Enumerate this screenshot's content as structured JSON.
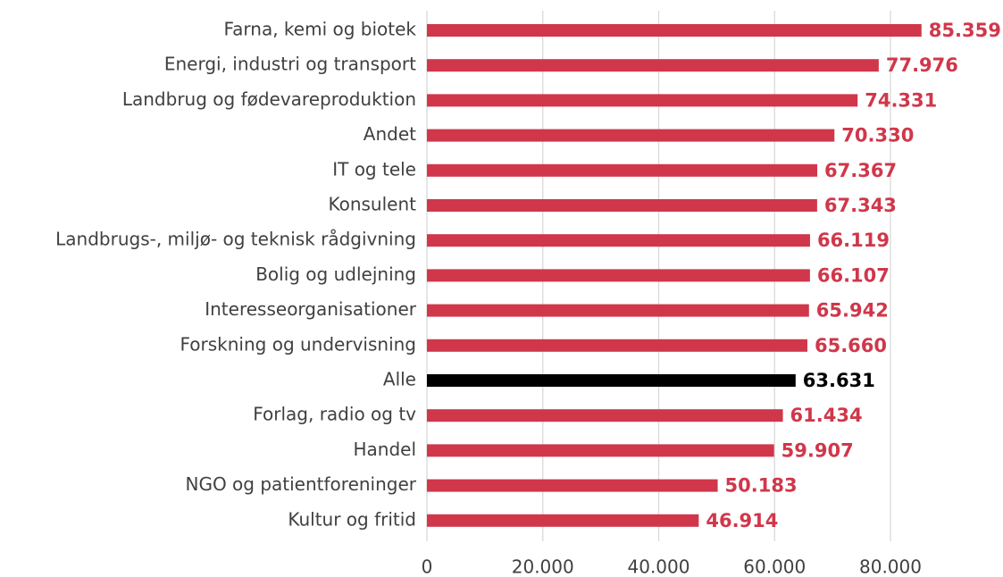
{
  "chart_data": {
    "type": "bar",
    "orientation": "horizontal",
    "categories": [
      "Farna, kemi og biotek",
      "Energi, industri og transport",
      "Landbrug og fødevareproduktion",
      "Andet",
      "IT og tele",
      "Konsulent",
      "Landbrugs-, miljø- og teknisk rådgivning",
      "Bolig og udlejning",
      "Interesseorganisationer",
      "Forskning og undervisning",
      "Alle",
      "Forlag, radio og tv",
      "Handel",
      "NGO og patientforeninger",
      "Kultur og fritid"
    ],
    "values": [
      85359,
      77976,
      74331,
      70330,
      67367,
      67343,
      66119,
      66107,
      65942,
      65660,
      63631,
      61434,
      59907,
      50183,
      46914
    ],
    "value_labels": [
      "85.359",
      "77.976",
      "74.331",
      "70.330",
      "67.367",
      "67.343",
      "66.119",
      "66.107",
      "65.942",
      "65.660",
      "63.631",
      "61.434",
      "59.907",
      "50.183",
      "46.914"
    ],
    "colors": [
      "#d0374a",
      "#d0374a",
      "#d0374a",
      "#d0374a",
      "#d0374a",
      "#d0374a",
      "#d0374a",
      "#d0374a",
      "#d0374a",
      "#d0374a",
      "#000000",
      "#d0374a",
      "#d0374a",
      "#d0374a",
      "#d0374a"
    ],
    "xlim": [
      0,
      90000
    ],
    "xticks": [
      0,
      {
        "value": 20000,
        "label": "20.000"
      },
      {
        "value": 40000,
        "label": "40.000"
      },
      {
        "value": 60000,
        "label": "60.000"
      },
      {
        "value": 80000,
        "label": "80.000"
      }
    ],
    "grid": true
  }
}
